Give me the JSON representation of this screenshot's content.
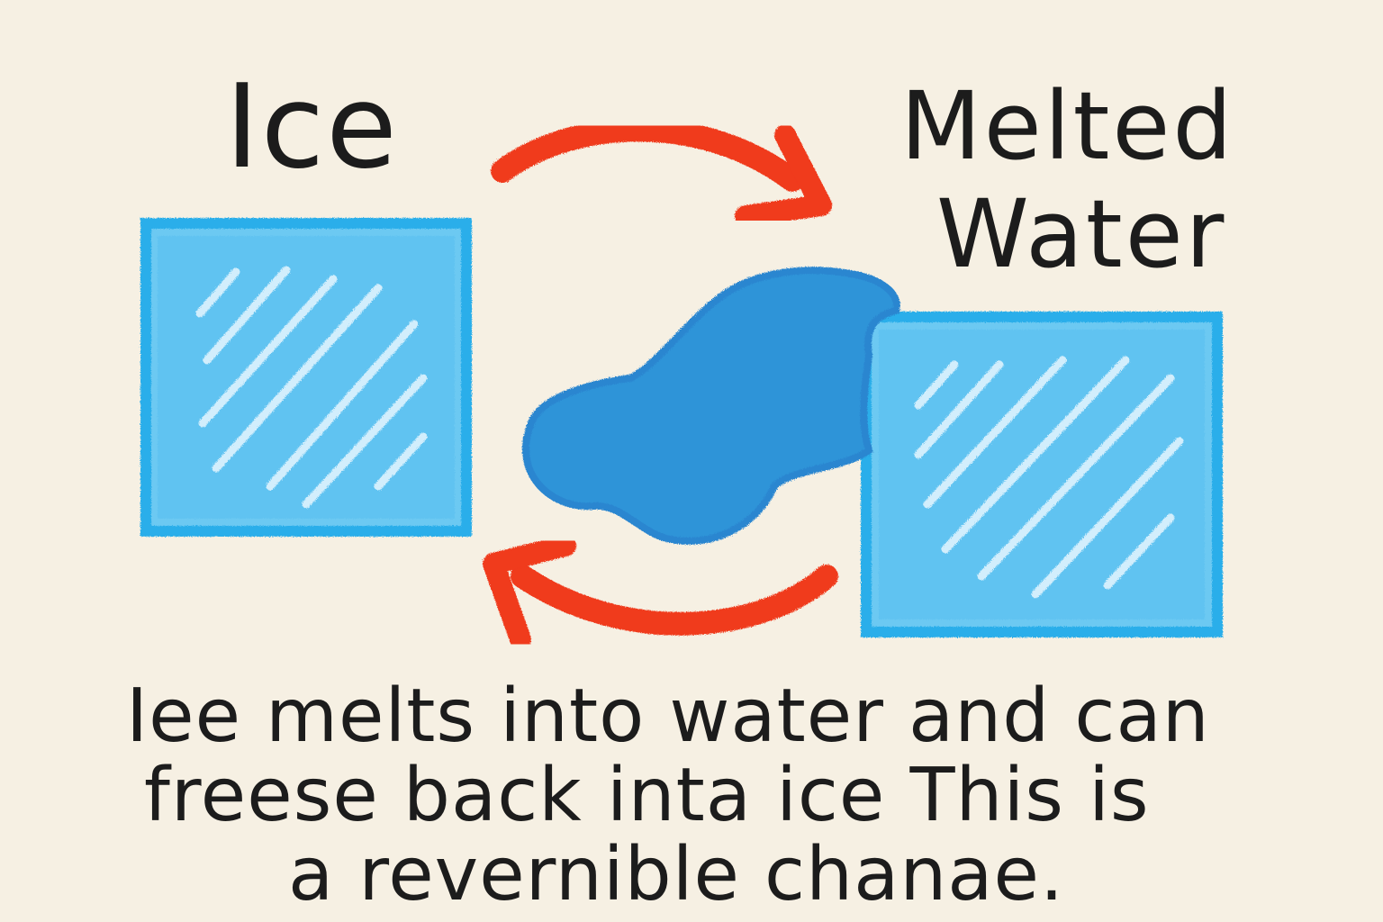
{
  "labels": {
    "ice": "Ice",
    "melted_water_line1": "Melted",
    "melted_water_line2": "Water"
  },
  "caption": {
    "line1": "Iee melts into water and can",
    "line2": "freese back inta ice  This is",
    "line3": "a revernible chanae."
  },
  "colors": {
    "background": "#f6f0e3",
    "ice_blue": "#38b8ee",
    "water_blue": "#2a8fd6",
    "arrow_red": "#f03a1e",
    "text": "#1c1c1c"
  },
  "icons": {
    "ice_block_left": "ice-cube",
    "ice_block_right": "ice-cube",
    "water_puddle": "water-puddle",
    "arrow_melt": "curved-arrow-right",
    "arrow_freeze": "curved-arrow-left"
  }
}
